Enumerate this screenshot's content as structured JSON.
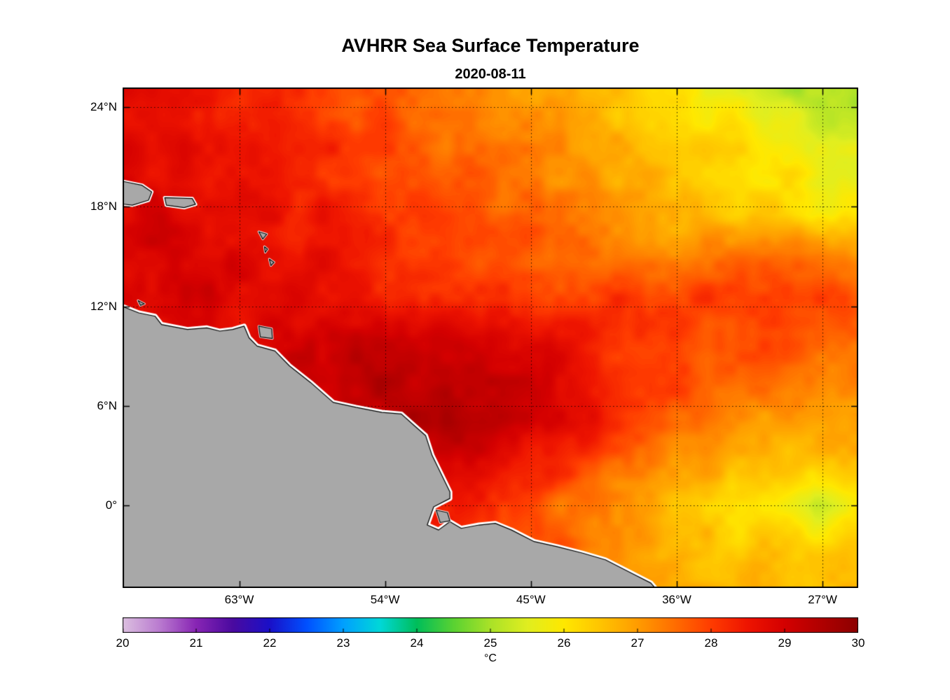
{
  "title": "AVHRR Sea Surface Temperature",
  "subtitle": "2020-08-11",
  "chart_data": {
    "type": "heatmap",
    "title": "AVHRR Sea Surface Temperature",
    "subtitle": "2020-08-11",
    "grid": true,
    "lon_range": [
      -70.2,
      -24.8
    ],
    "lat_range": [
      -5.0,
      25.2
    ],
    "lon_ticks": [
      -63,
      -54,
      -45,
      -36,
      -27
    ],
    "lon_tick_labels": [
      "63°W",
      "54°W",
      "45°W",
      "36°W",
      "27°W"
    ],
    "lat_ticks": [
      24,
      18,
      12,
      6,
      0
    ],
    "lat_tick_labels": [
      "24°N",
      "18°N",
      "12°N",
      "6°N",
      "0°"
    ],
    "colorbar": {
      "label": "°C",
      "min": 20,
      "max": 30,
      "ticks": [
        20,
        21,
        22,
        23,
        24,
        25,
        26,
        27,
        28,
        29,
        30
      ],
      "tick_labels": [
        "20",
        "21",
        "22",
        "23",
        "24",
        "25",
        "26",
        "27",
        "28",
        "29",
        "30"
      ],
      "colormap": {
        "values": [
          20,
          20.5,
          21,
          21.5,
          22,
          22.5,
          23,
          23.5,
          24,
          24.5,
          25,
          25.5,
          26,
          26.5,
          27,
          27.5,
          28,
          28.5,
          29,
          29.5,
          30
        ],
        "colors": [
          "#DCC0E0",
          "#BA7BD0",
          "#8825B4",
          "#4A0AA0",
          "#1A10C8",
          "#0050FF",
          "#00A0FF",
          "#00D8D8",
          "#00BE5A",
          "#5AD232",
          "#AAE228",
          "#E0EE20",
          "#FFE800",
          "#FFC400",
          "#FF9C00",
          "#FF6E00",
          "#FF3C00",
          "#EE1400",
          "#D40000",
          "#B00000",
          "#8C0000"
        ]
      }
    },
    "sst_grid": {
      "lon": [
        -70,
        -67.5,
        -65,
        -62.5,
        -60,
        -57.5,
        -55,
        -52.5,
        -50,
        -47.5,
        -45,
        -42.5,
        -40,
        -37.5,
        -35,
        -32.5,
        -30,
        -27.5,
        -25
      ],
      "lat": [
        25,
        22.5,
        20,
        17.5,
        15,
        12.5,
        10,
        7.5,
        5,
        2.5,
        0,
        -2.5,
        -5
      ],
      "values_c": [
        [
          28.6,
          28.6,
          28.5,
          28.4,
          28.2,
          28.0,
          27.8,
          27.6,
          27.4,
          27.2,
          27.0,
          26.8,
          26.5,
          26.2,
          26.0,
          25.7,
          25.4,
          25.1,
          24.9
        ],
        [
          28.7,
          28.7,
          28.6,
          28.5,
          28.3,
          28.1,
          27.9,
          27.7,
          27.5,
          27.3,
          27.1,
          26.9,
          26.7,
          26.4,
          26.2,
          26.0,
          25.7,
          25.4,
          25.2
        ],
        [
          28.8,
          28.7,
          28.7,
          28.6,
          28.4,
          28.2,
          28.0,
          27.8,
          27.7,
          27.5,
          27.3,
          27.1,
          26.9,
          26.7,
          26.5,
          26.3,
          26.1,
          25.9,
          25.6
        ],
        [
          28.9,
          29.0,
          28.8,
          28.7,
          28.5,
          28.4,
          28.2,
          28.0,
          27.9,
          27.7,
          27.5,
          27.3,
          27.1,
          26.9,
          26.7,
          26.5,
          26.3,
          26.1,
          26.0
        ],
        [
          29.0,
          29.0,
          28.9,
          28.8,
          28.6,
          28.5,
          28.3,
          28.1,
          28.0,
          27.8,
          27.6,
          27.5,
          27.4,
          27.4,
          27.3,
          27.4,
          27.6,
          27.4,
          27.0
        ],
        [
          28.8,
          28.9,
          28.9,
          28.8,
          28.7,
          28.6,
          28.5,
          28.4,
          28.3,
          28.2,
          28.1,
          28.0,
          28.0,
          28.1,
          28.0,
          27.9,
          28.1,
          28.0,
          27.6
        ],
        [
          28.5,
          28.6,
          28.7,
          28.8,
          29.0,
          29.2,
          29.3,
          29.2,
          29.0,
          28.9,
          28.7,
          28.4,
          28.2,
          28.0,
          27.9,
          27.8,
          27.9,
          27.8,
          27.4
        ],
        [
          29.0,
          29.0,
          29.0,
          29.0,
          29.1,
          29.3,
          29.5,
          29.4,
          29.2,
          29.2,
          29.0,
          28.6,
          28.2,
          28.0,
          27.8,
          27.6,
          27.5,
          27.3,
          27.2
        ],
        [
          29.0,
          29.0,
          29.0,
          29.0,
          29.0,
          29.1,
          29.2,
          29.3,
          29.4,
          29.2,
          29.0,
          28.6,
          28.2,
          27.8,
          27.5,
          27.2,
          27.0,
          26.8,
          26.8
        ],
        [
          28.8,
          28.8,
          28.8,
          28.8,
          28.8,
          28.8,
          28.8,
          28.8,
          28.8,
          28.7,
          28.5,
          28.1,
          27.7,
          27.3,
          27.0,
          26.8,
          26.6,
          26.4,
          26.5
        ],
        [
          28.5,
          28.5,
          28.5,
          28.5,
          28.5,
          28.5,
          28.5,
          28.5,
          28.4,
          28.2,
          27.9,
          27.5,
          27.1,
          26.8,
          26.5,
          26.2,
          26.0,
          25.4,
          26.0
        ],
        [
          28.0,
          28.0,
          28.0,
          28.0,
          28.0,
          28.0,
          28.0,
          28.0,
          28.0,
          27.9,
          27.8,
          27.6,
          27.2,
          26.8,
          26.6,
          26.5,
          26.4,
          26.2,
          26.3
        ],
        [
          27.5,
          27.5,
          27.5,
          27.5,
          27.5,
          27.5,
          27.5,
          27.5,
          27.5,
          27.5,
          27.4,
          27.3,
          27.2,
          27.1,
          26.9,
          26.7,
          26.6,
          26.5,
          26.5
        ]
      ]
    },
    "land": {
      "color": "#A8A8A8",
      "halo_color": "#FFFFFF",
      "mainland": [
        [
          -70.5,
          12.1
        ],
        [
          -69.2,
          11.6
        ],
        [
          -68.2,
          11.4
        ],
        [
          -67.8,
          10.9
        ],
        [
          -66.2,
          10.6
        ],
        [
          -65.0,
          10.7
        ],
        [
          -64.2,
          10.5
        ],
        [
          -63.4,
          10.6
        ],
        [
          -62.7,
          10.8
        ],
        [
          -62.4,
          10.1
        ],
        [
          -61.9,
          9.6
        ],
        [
          -60.8,
          9.3
        ],
        [
          -59.9,
          8.4
        ],
        [
          -58.6,
          7.4
        ],
        [
          -57.2,
          6.2
        ],
        [
          -55.8,
          5.9
        ],
        [
          -54.2,
          5.6
        ],
        [
          -53.0,
          5.5
        ],
        [
          -52.2,
          4.8
        ],
        [
          -51.5,
          4.2
        ],
        [
          -51.1,
          3.0
        ],
        [
          -50.5,
          1.8
        ],
        [
          -50.0,
          0.8
        ],
        [
          -50.0,
          0.4
        ],
        [
          -51.0,
          -0.1
        ],
        [
          -51.4,
          -1.2
        ],
        [
          -50.7,
          -1.5
        ],
        [
          -50.0,
          -1.0
        ],
        [
          -49.3,
          -1.4
        ],
        [
          -48.2,
          -1.2
        ],
        [
          -47.2,
          -1.1
        ],
        [
          -46.2,
          -1.5
        ],
        [
          -44.8,
          -2.2
        ],
        [
          -43.4,
          -2.5
        ],
        [
          -41.8,
          -2.9
        ],
        [
          -40.4,
          -3.3
        ],
        [
          -38.8,
          -4.1
        ],
        [
          -37.6,
          -4.7
        ],
        [
          -36.9,
          -5.5
        ],
        [
          -70.5,
          -5.5
        ]
      ],
      "islands": [
        {
          "name": "hispaniola",
          "pts": [
            [
              -70.5,
              19.6
            ],
            [
              -69.0,
              19.3
            ],
            [
              -68.4,
              18.9
            ],
            [
              -68.6,
              18.4
            ],
            [
              -69.6,
              18.1
            ],
            [
              -70.5,
              18.2
            ]
          ]
        },
        {
          "name": "puerto-rico",
          "pts": [
            [
              -67.6,
              18.55
            ],
            [
              -65.9,
              18.5
            ],
            [
              -65.7,
              18.15
            ],
            [
              -66.4,
              17.95
            ],
            [
              -67.5,
              18.1
            ]
          ]
        },
        {
          "name": "trinidad",
          "pts": [
            [
              -61.8,
              10.8
            ],
            [
              -61.0,
              10.65
            ],
            [
              -60.95,
              10.05
            ],
            [
              -61.7,
              10.15
            ]
          ]
        },
        {
          "name": "guadeloupe",
          "pts": [
            [
              -61.8,
              16.5
            ],
            [
              -61.3,
              16.35
            ],
            [
              -61.55,
              16.05
            ]
          ]
        },
        {
          "name": "dominica",
          "pts": [
            [
              -61.45,
              15.6
            ],
            [
              -61.25,
              15.45
            ],
            [
              -61.4,
              15.25
            ]
          ]
        },
        {
          "name": "martinique",
          "pts": [
            [
              -61.15,
              14.85
            ],
            [
              -60.85,
              14.65
            ],
            [
              -61.05,
              14.45
            ]
          ]
        },
        {
          "name": "curacao",
          "pts": [
            [
              -69.25,
              12.35
            ],
            [
              -68.85,
              12.15
            ],
            [
              -69.1,
              12.05
            ]
          ]
        },
        {
          "name": "marajo",
          "pts": [
            [
              -50.85,
              -0.3
            ],
            [
              -50.15,
              -0.45
            ],
            [
              -50.0,
              -0.95
            ],
            [
              -50.6,
              -1.05
            ]
          ]
        }
      ]
    }
  }
}
